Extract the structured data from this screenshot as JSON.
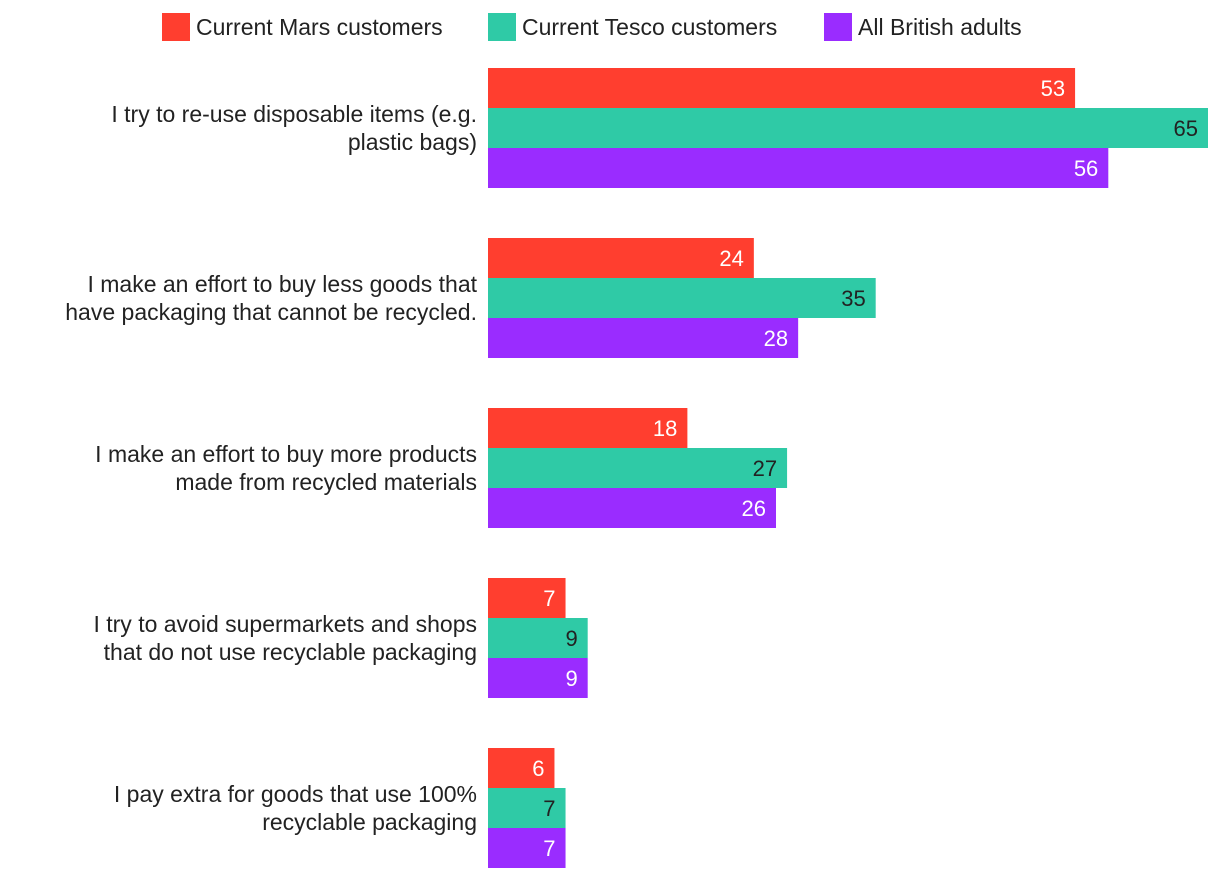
{
  "chart_data": {
    "type": "bar",
    "orientation": "horizontal",
    "categories": [
      [
        "I try to re-use disposable items (e.g.",
        "plastic bags)"
      ],
      [
        "I make an effort to buy less goods that",
        "have packaging that cannot be recycled."
      ],
      [
        "I make an effort to buy more products",
        "made from recycled materials"
      ],
      [
        "I try to avoid supermarkets and shops",
        "that do not use recyclable packaging"
      ],
      [
        "I pay extra for goods that use 100%",
        "recyclable packaging"
      ]
    ],
    "series": [
      {
        "name": "Current Mars customers",
        "color": "#ff3e2f",
        "label_color": "#ffffff",
        "values": [
          53,
          24,
          18,
          7,
          6
        ]
      },
      {
        "name": "Current Tesco customers",
        "color": "#2fcaa6",
        "label_color": "#222222",
        "values": [
          65,
          35,
          27,
          9,
          7
        ]
      },
      {
        "name": "All British adults",
        "color": "#9a2cff",
        "label_color": "#ffffff",
        "values": [
          56,
          28,
          26,
          9,
          7
        ]
      }
    ],
    "xlim": [
      0,
      65
    ],
    "legend_position": "top",
    "grid": false,
    "data_labels": true
  }
}
